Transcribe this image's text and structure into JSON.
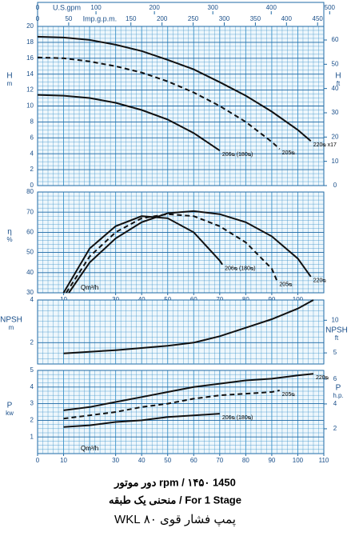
{
  "chart_data": [
    {
      "type": "line",
      "xlim": [
        0,
        110
      ],
      "ylim": [
        0,
        20
      ],
      "yticks": [
        0,
        2,
        4,
        6,
        8,
        10,
        12,
        14,
        16,
        18,
        20
      ],
      "y2lim": [
        0,
        65.6
      ],
      "y2ticks": [
        0,
        10,
        20,
        30,
        40,
        50,
        60
      ],
      "ylabel": "H",
      "yunit": "m",
      "y2label": "H",
      "y2unit": "ft",
      "x2lim": [
        0,
        490
      ],
      "x2ticks": [
        0,
        100,
        200,
        300,
        400,
        500
      ],
      "x2label": "U.S.gpm",
      "x3lim": [
        0,
        460
      ],
      "x3ticks": [
        0,
        50,
        150,
        200,
        250,
        300,
        350,
        400,
        450
      ],
      "x3label": "Imp.g.p.m.",
      "series": [
        {
          "name": "220ᴓ x17",
          "dash": false,
          "x": [
            0,
            10,
            20,
            30,
            40,
            50,
            60,
            70,
            80,
            90,
            100,
            105
          ],
          "values": [
            18.7,
            18.6,
            18.3,
            17.7,
            16.9,
            15.8,
            14.6,
            13.0,
            11.3,
            9.3,
            7.0,
            5.6
          ]
        },
        {
          "name": "205ᴓ",
          "dash": true,
          "x": [
            0,
            10,
            20,
            30,
            40,
            50,
            60,
            70,
            80,
            90,
            93
          ],
          "values": [
            16.1,
            16.0,
            15.6,
            15.0,
            14.2,
            13.1,
            11.7,
            10.0,
            8.0,
            5.5,
            4.6
          ]
        },
        {
          "name": "206ᴓ (180ᴓ)",
          "dash": false,
          "x": [
            0,
            10,
            20,
            30,
            40,
            50,
            60,
            70
          ],
          "values": [
            11.4,
            11.3,
            11.0,
            10.4,
            9.5,
            8.3,
            6.6,
            4.4
          ]
        }
      ]
    },
    {
      "type": "line",
      "xlim": [
        0,
        110
      ],
      "xticks": [
        10,
        30,
        40,
        50,
        60,
        70,
        80,
        90,
        100
      ],
      "xlabel": "Qm³/h",
      "ylim": [
        30,
        80
      ],
      "yticks": [
        30,
        40,
        50,
        60,
        70,
        80
      ],
      "ylabel": "η",
      "yunit": "%",
      "series": [
        {
          "name": "220ᴓ",
          "dash": false,
          "x": [
            12,
            20,
            30,
            40,
            50,
            60,
            70,
            80,
            90,
            100,
            105
          ],
          "values": [
            30,
            45,
            57,
            65,
            69.5,
            70.5,
            69,
            65,
            58,
            47,
            38
          ]
        },
        {
          "name": "205ᴓ",
          "dash": true,
          "x": [
            11,
            20,
            30,
            40,
            50,
            60,
            70,
            80,
            90,
            92
          ],
          "values": [
            30,
            48,
            60,
            67,
            69,
            68,
            63,
            55,
            42,
            36
          ]
        },
        {
          "name": "206ᴓ (180ᴓ)",
          "dash": false,
          "x": [
            10,
            20,
            30,
            40,
            50,
            60,
            70,
            71
          ],
          "values": [
            30,
            52,
            63,
            68,
            67,
            60,
            46,
            44
          ]
        }
      ]
    },
    {
      "type": "line",
      "xlim": [
        0,
        110
      ],
      "ylim": [
        1,
        4
      ],
      "yticks": [
        2,
        4
      ],
      "y2lim": [
        3.3,
        13.1
      ],
      "y2ticks": [
        5,
        10
      ],
      "ylabel": "NPSH",
      "yunit": "m",
      "y2label": "NPSH",
      "y2unit": "ft",
      "series": [
        {
          "dash": false,
          "x": [
            10,
            30,
            50,
            60,
            70,
            80,
            90,
            100,
            106
          ],
          "values": [
            1.5,
            1.65,
            1.85,
            2.0,
            2.3,
            2.7,
            3.1,
            3.6,
            4.0
          ]
        }
      ]
    },
    {
      "type": "line",
      "xlim": [
        0,
        110
      ],
      "xticks": [
        0,
        10,
        30,
        40,
        50,
        60,
        70,
        80,
        90,
        100,
        110
      ],
      "xlabel": "Qm³/h",
      "ylim": [
        0,
        5
      ],
      "yticks": [
        1,
        2,
        3,
        4,
        5
      ],
      "y2lim": [
        0,
        6.7
      ],
      "y2ticks": [
        2,
        4,
        6
      ],
      "ylabel": "P",
      "yunit": "kw",
      "y2label": "P",
      "y2unit": "h.p.",
      "series": [
        {
          "name": "220ᴓ",
          "dash": false,
          "x": [
            10,
            20,
            30,
            40,
            50,
            60,
            70,
            80,
            90,
            100,
            106
          ],
          "values": [
            2.6,
            2.8,
            3.1,
            3.4,
            3.7,
            4.0,
            4.2,
            4.4,
            4.5,
            4.7,
            4.8
          ]
        },
        {
          "name": "205ᴓ",
          "dash": true,
          "x": [
            10,
            20,
            30,
            40,
            50,
            60,
            70,
            80,
            90,
            93
          ],
          "values": [
            2.1,
            2.3,
            2.5,
            2.8,
            3.0,
            3.3,
            3.5,
            3.6,
            3.7,
            3.8
          ]
        },
        {
          "name": "206ᴓ (180ᴓ)",
          "dash": false,
          "x": [
            10,
            20,
            30,
            40,
            50,
            60,
            70
          ],
          "values": [
            1.6,
            1.7,
            1.9,
            2.0,
            2.2,
            2.3,
            2.4
          ]
        }
      ]
    }
  ],
  "footer": [
    "1450 rpm / ۱۴۵۰ دور موتور",
    "For 1 Stage / منحنی یک طبقه",
    "پمپ فشار قوی ۸۰ WKL"
  ]
}
